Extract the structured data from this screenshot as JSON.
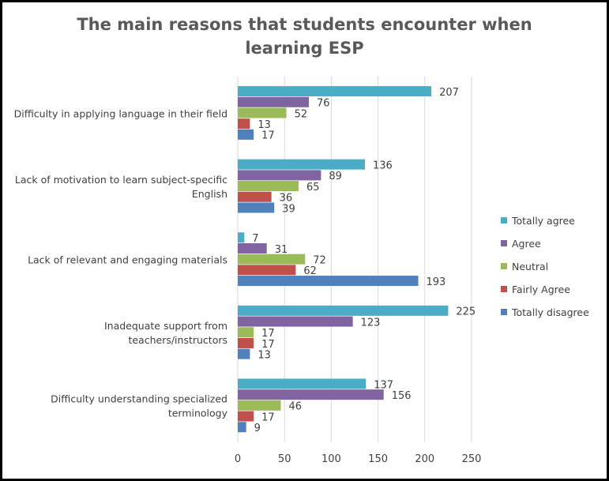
{
  "chart_data": {
    "type": "bar",
    "orientation": "horizontal",
    "title": "The main reasons that students encounter when learning ESP",
    "categories": [
      "Difficulty in applying language in their field",
      "Lack of motivation to learn subject-specific English",
      "Lack of relevant and engaging materials",
      "Inadequate support from teachers/instructors",
      "Difficulty understanding specialized terminology"
    ],
    "category_lines": [
      [
        "Difficulty in applying language in their field"
      ],
      [
        "Lack of motivation to learn subject-specific",
        "English"
      ],
      [
        "Lack of relevant and engaging materials"
      ],
      [
        "Inadequate support from",
        "teachers/instructors"
      ],
      [
        "Difficulty understanding specialized",
        "terminology"
      ]
    ],
    "series": [
      {
        "name": "Totally agree",
        "color": "#4BACC6",
        "values": [
          207,
          136,
          7,
          225,
          137
        ]
      },
      {
        "name": "Agree",
        "color": "#8064A2",
        "values": [
          76,
          89,
          31,
          123,
          156
        ]
      },
      {
        "name": "Neutral",
        "color": "#9BBB59",
        "values": [
          52,
          65,
          72,
          17,
          46
        ]
      },
      {
        "name": "Fairly Agree",
        "color": "#C0504D",
        "values": [
          13,
          36,
          62,
          17,
          17
        ]
      },
      {
        "name": "Totally disagree",
        "color": "#4F81BD",
        "values": [
          17,
          39,
          193,
          13,
          9
        ]
      }
    ],
    "xlim": [
      0,
      250
    ],
    "xticks": [
      0,
      50,
      100,
      150,
      200,
      250
    ],
    "xlabel": "",
    "ylabel": "",
    "grid": true,
    "legend": "right",
    "data_labels": true
  }
}
